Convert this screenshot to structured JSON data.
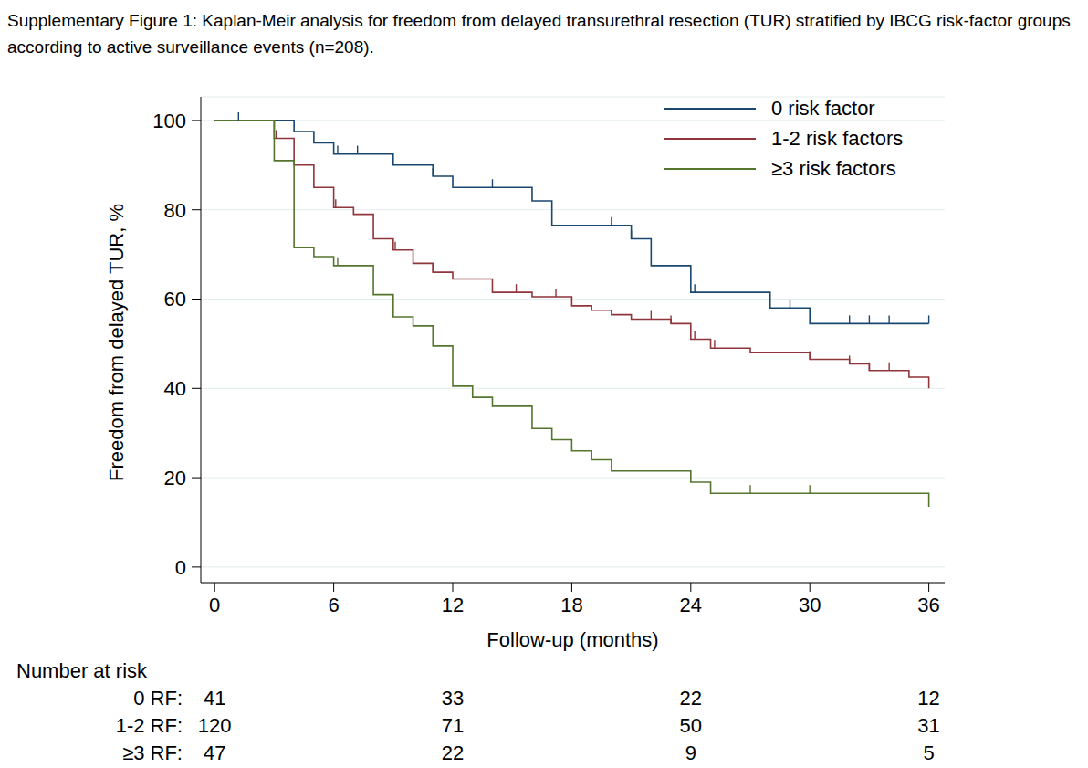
{
  "chart_data": {
    "type": "line",
    "line_style": "step",
    "title": "Supplementary Figure 1: Kaplan-Meir analysis for freedom from delayed transurethral resection (TUR) stratified by IBCG risk-factor groups according to active surveillance events (n=208).",
    "x_label": "Follow-up (months)",
    "y_label": "Freedom from delayed TUR, %",
    "xlim": [
      -0.7,
      36.8
    ],
    "xticks": [
      0,
      6,
      12,
      18,
      24,
      30,
      36
    ],
    "ylim": [
      -3.5,
      105.3
    ],
    "yticks": [
      0,
      20,
      40,
      60,
      80,
      100
    ],
    "grid": true,
    "legend": "top right",
    "series": [
      {
        "name": "0 risk factor",
        "color": "#1a476f",
        "x": [
          0,
          4,
          5,
          6,
          9,
          11,
          12,
          16,
          17,
          21,
          22,
          24,
          28,
          30,
          36
        ],
        "values": [
          100,
          97.5,
          95,
          92.5,
          90,
          87.5,
          85,
          82,
          76.5,
          73.5,
          67.5,
          61.5,
          58,
          54.5,
          54.5
        ],
        "censored": {
          "x": [
            1.2,
            6.2,
            7.2,
            11,
            14,
            20,
            21,
            24.2,
            29,
            32,
            33,
            34,
            36
          ],
          "values": [
            100,
            92.5,
            92.5,
            87.5,
            85,
            76.5,
            73.5,
            61.5,
            58,
            54.5,
            54.5,
            54.5,
            54.5
          ]
        }
      },
      {
        "name": "1-2 risk factors",
        "color": "#90353b",
        "x": [
          0,
          3,
          4,
          5,
          6,
          7,
          8,
          9,
          10,
          11,
          12,
          14,
          16,
          18,
          19,
          20,
          21,
          23,
          24,
          25,
          27,
          30,
          32,
          33,
          35,
          36
        ],
        "values": [
          100,
          96,
          90,
          85,
          80.5,
          79,
          73.5,
          71,
          68,
          66,
          64.5,
          61.5,
          60.5,
          58.5,
          57.5,
          56.5,
          55.5,
          54.5,
          51,
          49,
          48,
          46.5,
          45.5,
          44,
          42.5,
          40
        ],
        "censored": {
          "x": [
            3.1,
            6.1,
            9.1,
            11,
            15.2,
            17.2,
            22,
            23,
            24.2,
            25.2,
            30,
            32,
            33,
            34
          ],
          "values": [
            96,
            80.5,
            71,
            66,
            61.5,
            60.5,
            55.5,
            54.5,
            51,
            49,
            46.5,
            45.5,
            44,
            44
          ]
        }
      },
      {
        "name": "≥3 risk factors",
        "color": "#55752f",
        "x": [
          0,
          3,
          4,
          5,
          6,
          8,
          9,
          10,
          11,
          12,
          13,
          14,
          16,
          17,
          18,
          19,
          20,
          24,
          25,
          36
        ],
        "values": [
          100,
          91,
          71.5,
          69.5,
          67.5,
          61,
          56,
          54,
          49.5,
          40.5,
          38,
          36,
          31,
          28.5,
          26,
          24,
          21.5,
          19,
          16.5,
          13.5
        ],
        "censored": {
          "x": [
            6.2,
            27,
            30
          ],
          "values": [
            67.5,
            16.5,
            16.5
          ]
        }
      }
    ],
    "risk_table": {
      "title": "Number at risk",
      "x": [
        0,
        12,
        24,
        36
      ],
      "rows": [
        {
          "label": "0 RF:",
          "values": [
            41,
            33,
            22,
            12
          ]
        },
        {
          "label": "1-2 RF:",
          "values": [
            120,
            71,
            50,
            31
          ]
        },
        {
          "label": "≥3 RF:",
          "values": [
            47,
            22,
            9,
            5
          ]
        }
      ]
    }
  }
}
